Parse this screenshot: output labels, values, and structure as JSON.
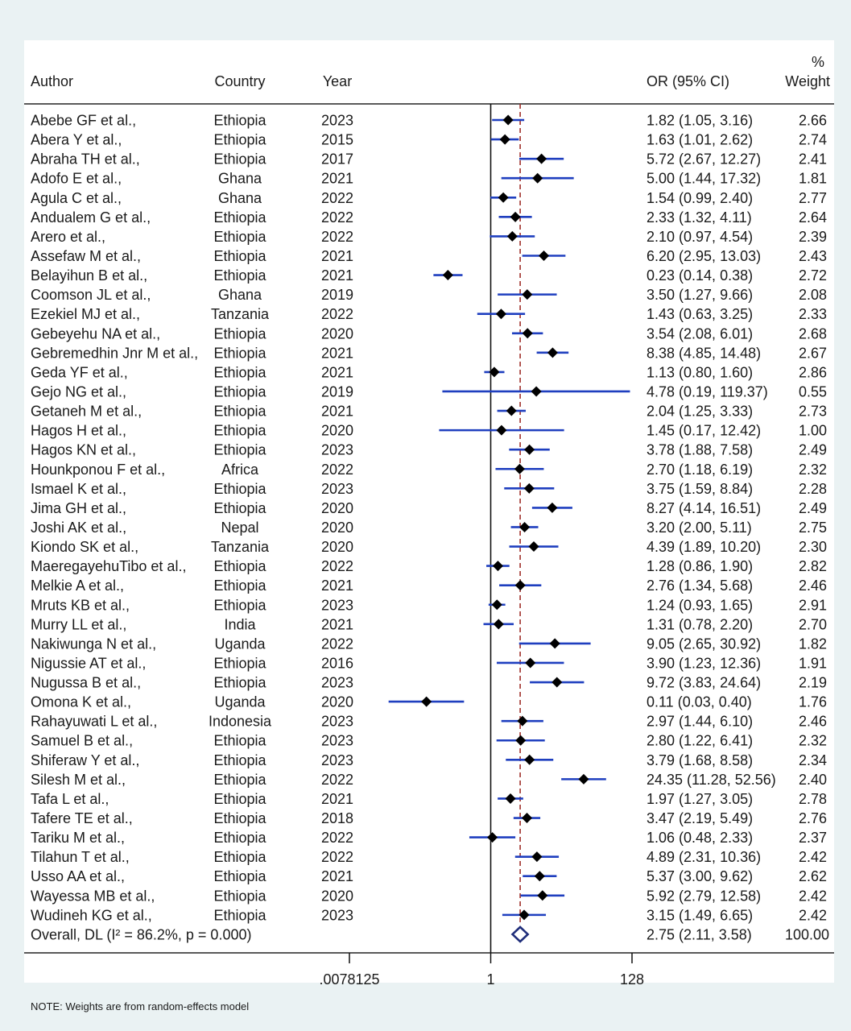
{
  "headers": {
    "author": "Author",
    "country": "Country",
    "year": "Year",
    "or_ci": "OR (95% CI)",
    "weight_line1": "%",
    "weight_line2": "Weight"
  },
  "note": "NOTE: Weights are from random-effects model",
  "colors": {
    "ci_line": "#1f3fbf",
    "point": "#000000",
    "overall": "#1f2d7a",
    "ref_line": "#a0302a"
  },
  "chart_data": {
    "type": "forest",
    "scale": "log2",
    "xlim": [
      0.0078125,
      128
    ],
    "xticks": [
      ".0078125",
      "1",
      "128"
    ],
    "xtick_values": [
      0.0078125,
      1,
      128
    ],
    "null_line": 1,
    "overall": {
      "label": "Overall, DL (I² = 86.2%, p = 0.000)",
      "or": 2.75,
      "lo": 2.11,
      "hi": 3.58,
      "ci_text": "2.75 (2.11, 3.58)",
      "weight": "100.00"
    },
    "studies": [
      {
        "author": "Abebe GF et al.,",
        "country": "Ethiopia",
        "year": "2023",
        "or": 1.82,
        "lo": 1.05,
        "hi": 3.16,
        "ci_text": "1.82 (1.05, 3.16)",
        "weight": "2.66"
      },
      {
        "author": "Abera Y et al.,",
        "country": "Ethiopia",
        "year": "2015",
        "or": 1.63,
        "lo": 1.01,
        "hi": 2.62,
        "ci_text": "1.63 (1.01, 2.62)",
        "weight": "2.74"
      },
      {
        "author": "Abraha TH et al.,",
        "country": "Ethiopia",
        "year": "2017",
        "or": 5.72,
        "lo": 2.67,
        "hi": 12.27,
        "ci_text": "5.72 (2.67, 12.27)",
        "weight": "2.41"
      },
      {
        "author": "Adofo E et al.,",
        "country": "Ghana",
        "year": "2021",
        "or": 5.0,
        "lo": 1.44,
        "hi": 17.32,
        "ci_text": "5.00 (1.44, 17.32)",
        "weight": "1.81"
      },
      {
        "author": "Agula C et al.,",
        "country": "Ghana",
        "year": "2022",
        "or": 1.54,
        "lo": 0.99,
        "hi": 2.4,
        "ci_text": "1.54 (0.99, 2.40)",
        "weight": "2.77"
      },
      {
        "author": "Andualem G et al.,",
        "country": "Ethiopia",
        "year": "2022",
        "or": 2.33,
        "lo": 1.32,
        "hi": 4.11,
        "ci_text": "2.33 (1.32, 4.11)",
        "weight": "2.64"
      },
      {
        "author": "Arero et al.,",
        "country": "Ethiopia",
        "year": "2022",
        "or": 2.1,
        "lo": 0.97,
        "hi": 4.54,
        "ci_text": "2.10 (0.97, 4.54)",
        "weight": "2.39"
      },
      {
        "author": "Assefaw M et al.,",
        "country": "Ethiopia",
        "year": "2021",
        "or": 6.2,
        "lo": 2.95,
        "hi": 13.03,
        "ci_text": "6.20 (2.95, 13.03)",
        "weight": "2.43"
      },
      {
        "author": "Belayihun B et al.,",
        "country": "Ethiopia",
        "year": "2021",
        "or": 0.23,
        "lo": 0.14,
        "hi": 0.38,
        "ci_text": "0.23 (0.14, 0.38)",
        "weight": "2.72"
      },
      {
        "author": "Coomson JL et al.,",
        "country": "Ghana",
        "year": "2019",
        "or": 3.5,
        "lo": 1.27,
        "hi": 9.66,
        "ci_text": "3.50 (1.27, 9.66)",
        "weight": "2.08"
      },
      {
        "author": "Ezekiel MJ et al.,",
        "country": "Tanzania",
        "year": "2022",
        "or": 1.43,
        "lo": 0.63,
        "hi": 3.25,
        "ci_text": "1.43 (0.63, 3.25)",
        "weight": "2.33"
      },
      {
        "author": "Gebeyehu NA et al.,",
        "country": "Ethiopia",
        "year": "2020",
        "or": 3.54,
        "lo": 2.08,
        "hi": 6.01,
        "ci_text": "3.54 (2.08, 6.01)",
        "weight": "2.68"
      },
      {
        "author": "Gebremedhin Jnr M et al.,",
        "country": "Ethiopia",
        "year": "2021",
        "or": 8.38,
        "lo": 4.85,
        "hi": 14.48,
        "ci_text": "8.38 (4.85, 14.48)",
        "weight": "2.67"
      },
      {
        "author": "Geda YF et al.,",
        "country": "Ethiopia",
        "year": "2021",
        "or": 1.13,
        "lo": 0.8,
        "hi": 1.6,
        "ci_text": "1.13 (0.80, 1.60)",
        "weight": "2.86"
      },
      {
        "author": "Gejo NG et al.,",
        "country": "Ethiopia",
        "year": "2019",
        "or": 4.78,
        "lo": 0.19,
        "hi": 119.37,
        "ci_text": "4.78 (0.19, 119.37)",
        "weight": "0.55"
      },
      {
        "author": "Getaneh M et al.,",
        "country": "Ethiopia",
        "year": "2021",
        "or": 2.04,
        "lo": 1.25,
        "hi": 3.33,
        "ci_text": "2.04 (1.25, 3.33)",
        "weight": "2.73"
      },
      {
        "author": "Hagos H et al.,",
        "country": "Ethiopia",
        "year": "2020",
        "or": 1.45,
        "lo": 0.17,
        "hi": 12.42,
        "ci_text": "1.45 (0.17, 12.42)",
        "weight": "1.00"
      },
      {
        "author": "Hagos KN et al.,",
        "country": "Ethiopia",
        "year": "2023",
        "or": 3.78,
        "lo": 1.88,
        "hi": 7.58,
        "ci_text": "3.78 (1.88, 7.58)",
        "weight": "2.49"
      },
      {
        "author": "Hounkponou F et al.,",
        "country": "Africa",
        "year": "2022",
        "or": 2.7,
        "lo": 1.18,
        "hi": 6.19,
        "ci_text": "2.70 (1.18, 6.19)",
        "weight": "2.32"
      },
      {
        "author": "Ismael K et al.,",
        "country": "Ethiopia",
        "year": "2023",
        "or": 3.75,
        "lo": 1.59,
        "hi": 8.84,
        "ci_text": "3.75 (1.59, 8.84)",
        "weight": "2.28"
      },
      {
        "author": "Jima GH et al.,",
        "country": "Ethiopia",
        "year": "2020",
        "or": 8.27,
        "lo": 4.14,
        "hi": 16.51,
        "ci_text": "8.27 (4.14, 16.51)",
        "weight": "2.49"
      },
      {
        "author": "Joshi AK et al.,",
        "country": "Nepal",
        "year": "2020",
        "or": 3.2,
        "lo": 2.0,
        "hi": 5.11,
        "ci_text": "3.20 (2.00, 5.11)",
        "weight": "2.75"
      },
      {
        "author": "Kiondo SK et al.,",
        "country": "Tanzania",
        "year": "2020",
        "or": 4.39,
        "lo": 1.89,
        "hi": 10.2,
        "ci_text": "4.39 (1.89, 10.20)",
        "weight": "2.30"
      },
      {
        "author": "MaeregayehuTibo et al.,",
        "country": "Ethiopia",
        "year": "2022",
        "or": 1.28,
        "lo": 0.86,
        "hi": 1.9,
        "ci_text": "1.28 (0.86, 1.90)",
        "weight": "2.82"
      },
      {
        "author": "Melkie A et al.,",
        "country": "Ethiopia",
        "year": "2021",
        "or": 2.76,
        "lo": 1.34,
        "hi": 5.68,
        "ci_text": "2.76 (1.34, 5.68)",
        "weight": "2.46"
      },
      {
        "author": "Mruts KB et al.,",
        "country": "Ethiopia",
        "year": "2023",
        "or": 1.24,
        "lo": 0.93,
        "hi": 1.65,
        "ci_text": "1.24 (0.93, 1.65)",
        "weight": "2.91"
      },
      {
        "author": "Murry LL et al.,",
        "country": "India",
        "year": "2021",
        "or": 1.31,
        "lo": 0.78,
        "hi": 2.2,
        "ci_text": "1.31 (0.78, 2.20)",
        "weight": "2.70"
      },
      {
        "author": "Nakiwunga N et al.,",
        "country": "Uganda",
        "year": "2022",
        "or": 9.05,
        "lo": 2.65,
        "hi": 30.92,
        "ci_text": "9.05 (2.65, 30.92)",
        "weight": "1.82"
      },
      {
        "author": "Nigussie AT et al.,",
        "country": "Ethiopia",
        "year": "2016",
        "or": 3.9,
        "lo": 1.23,
        "hi": 12.36,
        "ci_text": "3.90 (1.23, 12.36)",
        "weight": "1.91"
      },
      {
        "author": "Nugussa B et al.,",
        "country": "Ethiopia",
        "year": "2023",
        "or": 9.72,
        "lo": 3.83,
        "hi": 24.64,
        "ci_text": "9.72 (3.83, 24.64)",
        "weight": "2.19"
      },
      {
        "author": "Omona K et al.,",
        "country": "Uganda",
        "year": "2020",
        "or": 0.11,
        "lo": 0.03,
        "hi": 0.4,
        "ci_text": "0.11 (0.03, 0.40)",
        "weight": "1.76"
      },
      {
        "author": "Rahayuwati L et al.,",
        "country": "Indonesia",
        "year": "2023",
        "or": 2.97,
        "lo": 1.44,
        "hi": 6.1,
        "ci_text": "2.97 (1.44, 6.10)",
        "weight": "2.46"
      },
      {
        "author": "Samuel B et al.,",
        "country": "Ethiopia",
        "year": "2023",
        "or": 2.8,
        "lo": 1.22,
        "hi": 6.41,
        "ci_text": "2.80 (1.22, 6.41)",
        "weight": "2.32"
      },
      {
        "author": "Shiferaw Y et al.,",
        "country": "Ethiopia",
        "year": "2023",
        "or": 3.79,
        "lo": 1.68,
        "hi": 8.58,
        "ci_text": "3.79 (1.68, 8.58)",
        "weight": "2.34"
      },
      {
        "author": "Silesh M et al.,",
        "country": "Ethiopia",
        "year": "2022",
        "or": 24.35,
        "lo": 11.28,
        "hi": 52.56,
        "ci_text": "24.35 (11.28, 52.56)",
        "weight": "2.40"
      },
      {
        "author": "Tafa L et al.,",
        "country": "Ethiopia",
        "year": "2021",
        "or": 1.97,
        "lo": 1.27,
        "hi": 3.05,
        "ci_text": "1.97 (1.27, 3.05)",
        "weight": "2.78"
      },
      {
        "author": "Tafere TE et al.,",
        "country": "Ethiopia",
        "year": "2018",
        "or": 3.47,
        "lo": 2.19,
        "hi": 5.49,
        "ci_text": "3.47 (2.19, 5.49)",
        "weight": "2.76"
      },
      {
        "author": "Tariku M et al.,",
        "country": "Ethiopia",
        "year": "2022",
        "or": 1.06,
        "lo": 0.48,
        "hi": 2.33,
        "ci_text": "1.06 (0.48, 2.33)",
        "weight": "2.37"
      },
      {
        "author": "Tilahun T et al.,",
        "country": "Ethiopia",
        "year": "2022",
        "or": 4.89,
        "lo": 2.31,
        "hi": 10.36,
        "ci_text": "4.89 (2.31, 10.36)",
        "weight": "2.42"
      },
      {
        "author": "Usso AA et al.,",
        "country": "Ethiopia",
        "year": "2021",
        "or": 5.37,
        "lo": 3.0,
        "hi": 9.62,
        "ci_text": "5.37 (3.00, 9.62)",
        "weight": "2.62"
      },
      {
        "author": "Wayessa MB et al.,",
        "country": "Ethiopia",
        "year": "2020",
        "or": 5.92,
        "lo": 2.79,
        "hi": 12.58,
        "ci_text": "5.92 (2.79, 12.58)",
        "weight": "2.42"
      },
      {
        "author": "Wudineh KG et al.,",
        "country": "Ethiopia",
        "year": "2023",
        "or": 3.15,
        "lo": 1.49,
        "hi": 6.65,
        "ci_text": "3.15 (1.49, 6.65)",
        "weight": "2.42"
      }
    ]
  }
}
